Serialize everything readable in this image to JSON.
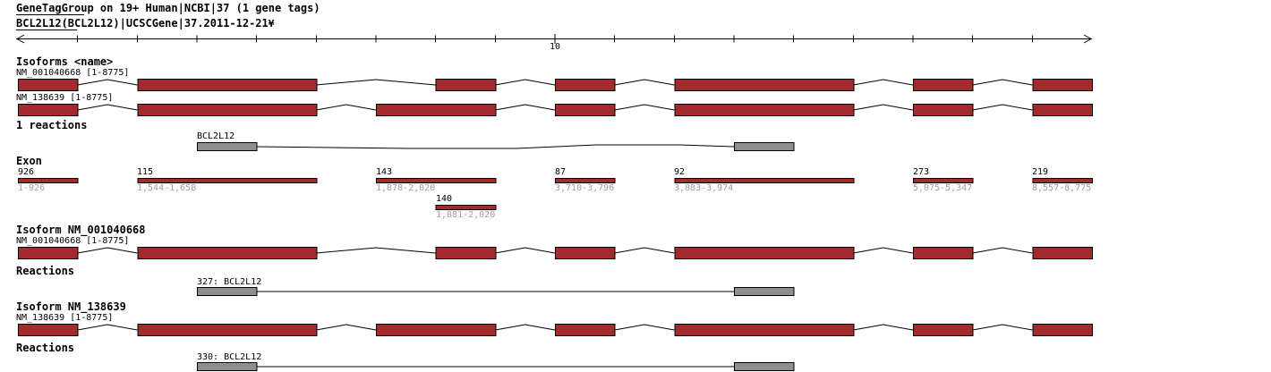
{
  "header": {
    "line1": "GeneTagGroup on 19+ Human|NCBI|37 (1 gene tags)",
    "line2": "BCL2L12(BCL2L12)|UCSCGene|37.2011-12-21",
    "line2_suffix": "¥"
  },
  "ruler": {
    "tick_label": "10",
    "tick_label_unit": 9,
    "num_ticks": 17
  },
  "isoforms_section": {
    "title": "Isoforms <name>",
    "tracks": [
      {
        "label": "NM_001040668 [1-8775]",
        "exon_units": [
          [
            0,
            1
          ],
          [
            2,
            5
          ],
          [
            7,
            8
          ],
          [
            9,
            10
          ],
          [
            11,
            14
          ],
          [
            15,
            16
          ],
          [
            17,
            18
          ]
        ]
      },
      {
        "label": "NM_138639 [1-8775]",
        "exon_units": [
          [
            0,
            1
          ],
          [
            2,
            5
          ],
          [
            6,
            8
          ],
          [
            9,
            10
          ],
          [
            11,
            14
          ],
          [
            15,
            16
          ],
          [
            17,
            18
          ]
        ]
      }
    ]
  },
  "reactions_section": {
    "title": "1 reactions",
    "reaction": {
      "label": "BCL2L12",
      "box_units": [
        [
          3,
          4
        ],
        [
          12,
          13
        ]
      ]
    }
  },
  "exon_section": {
    "title": "Exon",
    "exons": [
      {
        "length": "926",
        "range": "1-926",
        "units": [
          0,
          1
        ],
        "row": 0
      },
      {
        "length": "115",
        "range": "1,544-1,658",
        "units": [
          2,
          5
        ],
        "row": 0
      },
      {
        "length": "143",
        "range": "1,878-2,020",
        "units": [
          6,
          8
        ],
        "row": 0
      },
      {
        "length": "87",
        "range": "3,710-3,796",
        "units": [
          9,
          10
        ],
        "row": 0
      },
      {
        "length": "92",
        "range": "3,883-3,974",
        "units": [
          11,
          14
        ],
        "row": 0
      },
      {
        "length": "273",
        "range": "5,075-5,347",
        "units": [
          15,
          16
        ],
        "row": 0
      },
      {
        "length": "219",
        "range": "8,557-8,775",
        "units": [
          17,
          18
        ],
        "row": 0
      },
      {
        "length": "140",
        "range": "1,881-2,020",
        "units": [
          7,
          8
        ],
        "row": 1
      }
    ]
  },
  "isoform_details": [
    {
      "title": "Isoform NM_001040668",
      "track_label": "NM_001040668 [1-8775]",
      "exon_units": [
        [
          0,
          1
        ],
        [
          2,
          5
        ],
        [
          7,
          8
        ],
        [
          9,
          10
        ],
        [
          11,
          14
        ],
        [
          15,
          16
        ],
        [
          17,
          18
        ]
      ],
      "reactions_title": "Reactions",
      "reaction": {
        "label": "327: BCL2L12",
        "box_units": [
          [
            3,
            4
          ],
          [
            12,
            13
          ]
        ]
      }
    },
    {
      "title": "Isoform NM_138639",
      "track_label": "NM_138639 [1-8775]",
      "exon_units": [
        [
          0,
          1
        ],
        [
          2,
          5
        ],
        [
          6,
          8
        ],
        [
          9,
          10
        ],
        [
          11,
          14
        ],
        [
          15,
          16
        ],
        [
          17,
          18
        ]
      ],
      "reactions_title": "Reactions",
      "reaction": {
        "label": "330: BCL2L12",
        "box_units": [
          [
            3,
            4
          ],
          [
            12,
            13
          ]
        ]
      }
    }
  ],
  "colors": {
    "exon_fill": "#A22B2B",
    "reaction_fill": "#8F8F8F",
    "muted_text": "#9E9E9E",
    "line": "#000000"
  }
}
